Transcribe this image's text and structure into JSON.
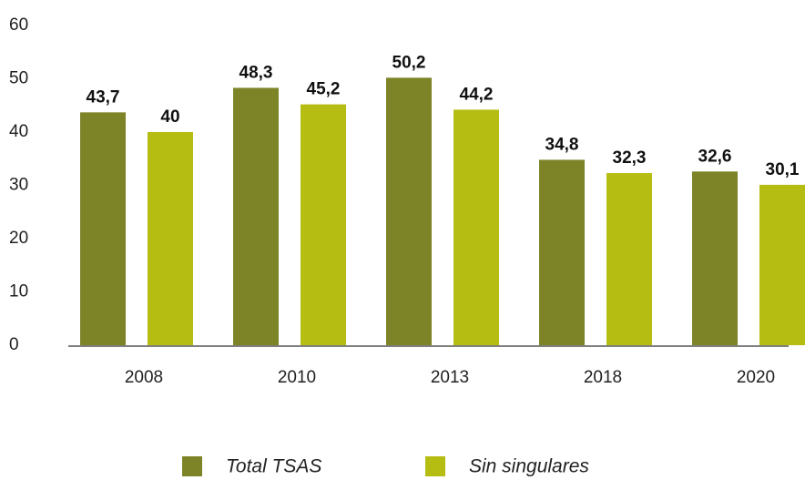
{
  "chart_data": {
    "type": "bar",
    "categories": [
      "2008",
      "2010",
      "2013",
      "2018",
      "2020"
    ],
    "series": [
      {
        "name": "Total TSAS",
        "color": "#7d8427",
        "values": [
          43.7,
          48.3,
          50.2,
          34.8,
          32.6
        ],
        "value_labels": [
          "43,7",
          "48,3",
          "50,2",
          "34,8",
          "32,6"
        ]
      },
      {
        "name": "Sin singulares",
        "color": "#b5bd12",
        "values": [
          40,
          45.2,
          44.2,
          32.3,
          30.1
        ],
        "value_labels": [
          "40",
          "45,2",
          "44,2",
          "32,3",
          "30,1"
        ]
      }
    ],
    "ylim": [
      0,
      60
    ],
    "yticks": [
      0,
      10,
      20,
      30,
      40,
      50,
      60
    ],
    "grid": false
  }
}
